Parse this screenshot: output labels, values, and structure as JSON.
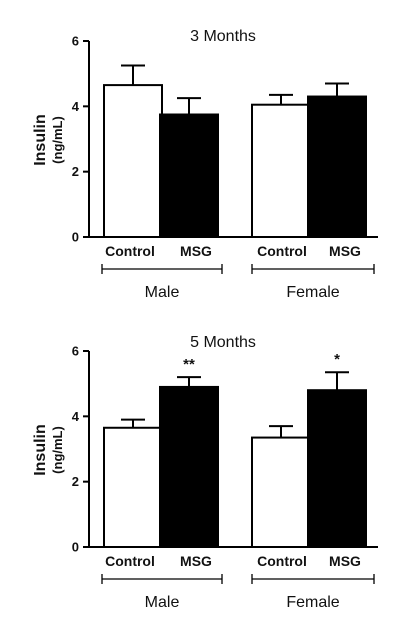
{
  "chart_data": [
    {
      "type": "bar",
      "title": "3 Months",
      "ylabel": "Insulin",
      "ylabel_unit": "(ng/mL)",
      "ylim": [
        0,
        6
      ],
      "yticks": [
        "0",
        "2",
        "4",
        "6"
      ],
      "categories": [
        "Control",
        "MSG",
        "Control",
        "MSG"
      ],
      "groups": [
        "Male",
        "Female"
      ],
      "fill_colors": [
        "#ffffff",
        "#000000",
        "#ffffff",
        "#000000"
      ],
      "values": [
        4.65,
        3.75,
        4.05,
        4.3
      ],
      "errors": [
        0.6,
        0.5,
        0.3,
        0.4
      ],
      "significance": [
        "",
        "",
        "",
        ""
      ],
      "grid": false
    },
    {
      "type": "bar",
      "title": "5 Months",
      "ylabel": "Insulin",
      "ylabel_unit": "(ng/mL)",
      "ylim": [
        0,
        6
      ],
      "yticks": [
        "0",
        "2",
        "4",
        "6"
      ],
      "categories": [
        "Control",
        "MSG",
        "Control",
        "MSG"
      ],
      "groups": [
        "Male",
        "Female"
      ],
      "fill_colors": [
        "#ffffff",
        "#000000",
        "#ffffff",
        "#000000"
      ],
      "values": [
        3.65,
        4.9,
        3.35,
        4.8
      ],
      "errors": [
        0.25,
        0.3,
        0.35,
        0.55
      ],
      "significance": [
        "",
        "**",
        "",
        "*"
      ],
      "grid": false
    }
  ]
}
